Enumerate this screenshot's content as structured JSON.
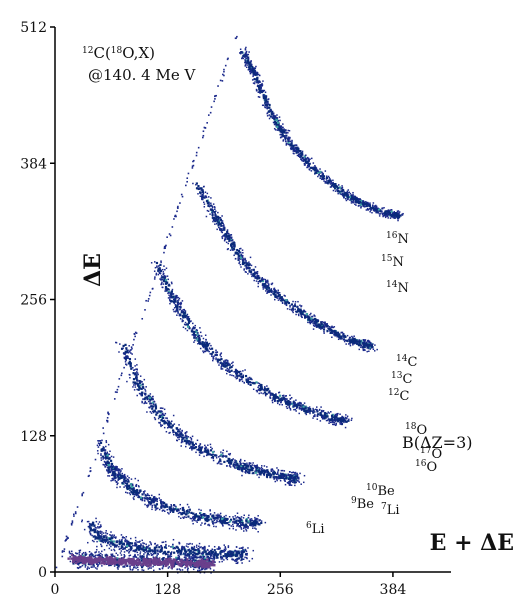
{
  "chart_data": {
    "type": "scatter",
    "subtitle": "@140. 4 Me V",
    "xlabel": "E + ΔE",
    "ylabel": "ΔE",
    "xlim": [
      0,
      450
    ],
    "ylim": [
      0,
      512
    ],
    "xticks": [
      0,
      128,
      256,
      384
    ],
    "yticks": [
      0,
      128,
      256,
      384,
      512
    ],
    "grid": false,
    "reaction": {
      "mass_super": "12",
      "element": "C",
      "paren_open": "(",
      "beam_super": "18",
      "beam": "O",
      "rest": ",X)"
    },
    "colors": {
      "dots": "#1c2a8c",
      "core": "#0a2a7a",
      "highlight": "#3fa3a3",
      "axis": "#000000"
    },
    "isotope_labels": [
      {
        "mass": "18",
        "symbol": "O"
      },
      {
        "mass": "17",
        "symbol": "O"
      },
      {
        "mass": "16",
        "symbol": "O"
      },
      {
        "mass": "16",
        "symbol": "N"
      },
      {
        "mass": "15",
        "symbol": "N"
      },
      {
        "mass": "14",
        "symbol": "N"
      },
      {
        "mass": "14",
        "symbol": "C"
      },
      {
        "mass": "13",
        "symbol": "C"
      },
      {
        "mass": "12",
        "symbol": "C"
      },
      {
        "mass": "10",
        "symbol": "Be"
      },
      {
        "mass": "9",
        "symbol": "Be"
      },
      {
        "mass": "7",
        "symbol": "Li"
      },
      {
        "mass": "6",
        "symbol": "Li"
      }
    ],
    "group_labels": [
      {
        "text": "B(ΔZ=3)"
      }
    ],
    "series": [
      {
        "element": "O",
        "points": [
          [
            212,
            490
          ],
          [
            225,
            470
          ],
          [
            245,
            430
          ],
          [
            265,
            405
          ],
          [
            295,
            378
          ],
          [
            330,
            355
          ],
          [
            360,
            342
          ],
          [
            390,
            335
          ]
        ]
      },
      {
        "element": "N",
        "points": [
          [
            160,
            365
          ],
          [
            185,
            330
          ],
          [
            210,
            295
          ],
          [
            245,
            265
          ],
          [
            290,
            238
          ],
          [
            330,
            220
          ],
          [
            360,
            212
          ]
        ]
      },
      {
        "element": "C",
        "points": [
          [
            115,
            290
          ],
          [
            135,
            255
          ],
          [
            160,
            222
          ],
          [
            200,
            190
          ],
          [
            250,
            165
          ],
          [
            295,
            150
          ],
          [
            330,
            142
          ]
        ]
      },
      {
        "element": "B",
        "points": [
          [
            75,
            215
          ],
          [
            95,
            175
          ],
          [
            120,
            145
          ],
          [
            160,
            118
          ],
          [
            210,
            100
          ],
          [
            250,
            92
          ],
          [
            275,
            88
          ]
        ]
      },
      {
        "element": "Be",
        "points": [
          [
            52,
            120
          ],
          [
            65,
            95
          ],
          [
            85,
            80
          ],
          [
            115,
            65
          ],
          [
            160,
            53
          ],
          [
            200,
            48
          ],
          [
            230,
            46
          ]
        ]
      },
      {
        "element": "Li",
        "points": [
          [
            38,
            46
          ],
          [
            50,
            33
          ],
          [
            75,
            27
          ],
          [
            110,
            22
          ],
          [
            150,
            20
          ],
          [
            190,
            18
          ],
          [
            215,
            17
          ]
        ]
      },
      {
        "element": "He",
        "points": [
          [
            20,
            13
          ],
          [
            45,
            12
          ],
          [
            80,
            11
          ],
          [
            120,
            10
          ],
          [
            160,
            9
          ],
          [
            175,
            9
          ]
        ]
      }
    ]
  }
}
